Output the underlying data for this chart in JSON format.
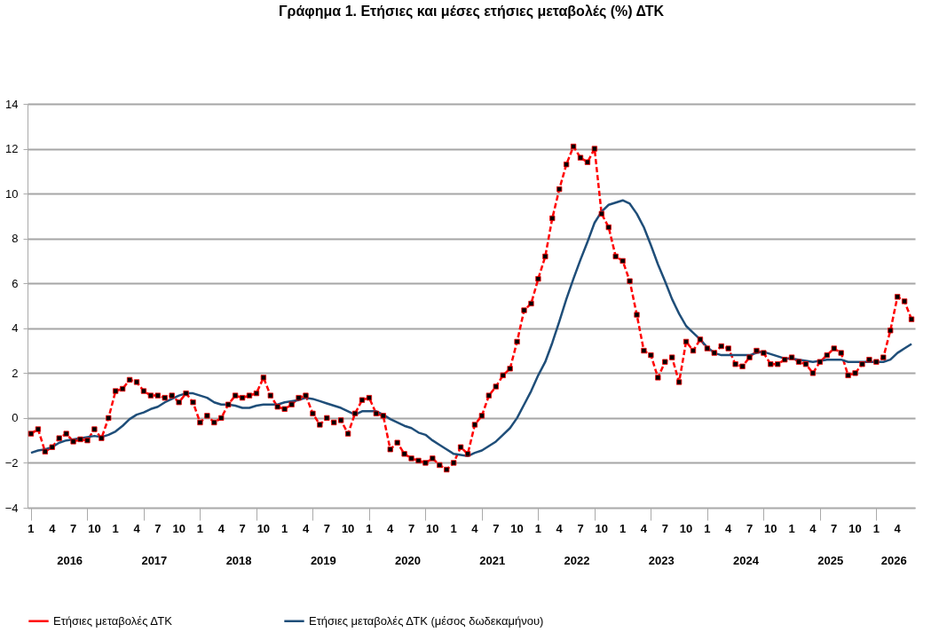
{
  "chart_data": {
    "type": "line",
    "title": "Γράφημα 1. Ετήσιες και μέσες ετήσιες μεταβολές (%) ΔΤΚ",
    "categories": [
      "1",
      null,
      null,
      "4",
      null,
      null,
      "7",
      null,
      null,
      "10",
      null,
      null,
      "1",
      null,
      null,
      "4",
      null,
      null,
      "7",
      null,
      null,
      "10",
      null,
      null,
      "1",
      null,
      null,
      "4",
      null,
      null,
      "7",
      null,
      null,
      "10",
      null,
      null,
      "1",
      null,
      null,
      "4",
      null,
      null,
      "7",
      null,
      null,
      "10",
      null,
      null,
      "1",
      null,
      null,
      "4",
      null,
      null,
      "7",
      null,
      null,
      "10",
      null,
      null,
      "1",
      null,
      null,
      "4",
      null,
      null,
      "7",
      null,
      null,
      "10",
      null,
      null,
      "1",
      null,
      null,
      "4",
      null,
      null,
      "7",
      null,
      null,
      "10",
      null,
      null,
      "1",
      null,
      null,
      "4",
      null,
      null,
      "7",
      null,
      null,
      "10",
      null,
      null,
      "1",
      null,
      null,
      "4",
      null,
      null,
      "7",
      null,
      null,
      "10",
      null,
      null,
      "1",
      null,
      null,
      "4",
      null,
      null,
      "7",
      null,
      null,
      "10",
      null,
      null,
      "1",
      null,
      null,
      "4",
      null,
      null
    ],
    "annotations": [
      "2016",
      "2017",
      "2018",
      "2019",
      "2020",
      "2021",
      "2022",
      "2023",
      "2024",
      "2025",
      "2026"
    ],
    "series": [
      {
        "name": "Ετήσιες μεταβολές ΔΤΚ",
        "color": "#ff0000",
        "line_style": "dashed",
        "marker": "square",
        "values": [
          -0.7,
          -0.5,
          -1.5,
          -1.3,
          -0.9,
          -0.7,
          -1.05,
          -0.95,
          -1.0,
          -0.5,
          -0.9,
          0.0,
          1.2,
          1.3,
          1.7,
          1.6,
          1.2,
          1.0,
          1.0,
          0.9,
          1.0,
          0.7,
          1.1,
          0.7,
          -0.2,
          0.1,
          -0.2,
          0.0,
          0.6,
          1.0,
          0.9,
          1.0,
          1.1,
          1.8,
          1.0,
          0.5,
          0.4,
          0.6,
          0.9,
          1.0,
          0.2,
          -0.3,
          0.0,
          -0.2,
          -0.1,
          -0.7,
          0.2,
          0.8,
          0.9,
          0.2,
          0.1,
          -1.4,
          -1.1,
          -1.6,
          -1.8,
          -1.9,
          -2.0,
          -1.8,
          -2.1,
          -2.3,
          -2.0,
          -1.3,
          -1.6,
          -0.3,
          0.1,
          1.0,
          1.4,
          1.9,
          2.2,
          3.4,
          4.8,
          5.1,
          6.2,
          7.2,
          8.9,
          10.2,
          11.3,
          12.1,
          11.6,
          11.4,
          12.0,
          9.1,
          8.5,
          7.2,
          7.0,
          6.1,
          4.6,
          3.0,
          2.8,
          1.8,
          2.5,
          2.7,
          1.6,
          3.4,
          3.0,
          3.5,
          3.1,
          2.9,
          3.2,
          3.1,
          2.4,
          2.3,
          2.7,
          3.0,
          2.9,
          2.4,
          2.4,
          2.6,
          2.7,
          2.5,
          2.4,
          2.0,
          2.5,
          2.8,
          3.1,
          2.9,
          1.9,
          2.0,
          2.4,
          2.6,
          2.5,
          2.7,
          3.9,
          5.4,
          5.2,
          4.4
        ]
      },
      {
        "name": "Ετήσιες μεταβολές ΔΤΚ (μέσος δωδεκαμήνου)",
        "color": "#1f4e79",
        "line_style": "solid",
        "marker": "none",
        "values": [
          -1.55,
          -1.45,
          -1.4,
          -1.3,
          -1.1,
          -1.0,
          -0.95,
          -0.9,
          -0.85,
          -0.8,
          -0.85,
          -0.75,
          -0.6,
          -0.35,
          -0.05,
          0.15,
          0.25,
          0.4,
          0.5,
          0.7,
          0.85,
          1.0,
          1.1,
          1.1,
          1.0,
          0.9,
          0.7,
          0.6,
          0.6,
          0.55,
          0.45,
          0.45,
          0.55,
          0.6,
          0.6,
          0.6,
          0.7,
          0.75,
          0.8,
          0.9,
          0.85,
          0.75,
          0.65,
          0.55,
          0.45,
          0.3,
          0.15,
          0.3,
          0.3,
          0.3,
          0.15,
          -0.05,
          -0.2,
          -0.35,
          -0.45,
          -0.65,
          -0.75,
          -1.0,
          -1.2,
          -1.4,
          -1.6,
          -1.65,
          -1.7,
          -1.55,
          -1.45,
          -1.25,
          -1.05,
          -0.75,
          -0.45,
          0.0,
          0.6,
          1.2,
          1.9,
          2.5,
          3.35,
          4.3,
          5.3,
          6.2,
          7.05,
          7.85,
          8.7,
          9.2,
          9.5,
          9.6,
          9.7,
          9.55,
          9.1,
          8.5,
          7.7,
          6.85,
          6.1,
          5.3,
          4.65,
          4.1,
          3.8,
          3.5,
          3.15,
          2.9,
          2.8,
          2.8,
          2.8,
          2.8,
          2.8,
          2.9,
          2.95,
          2.85,
          2.75,
          2.65,
          2.65,
          2.6,
          2.55,
          2.5,
          2.55,
          2.6,
          2.6,
          2.6,
          2.5,
          2.5,
          2.5,
          2.5,
          2.5,
          2.5,
          2.6,
          2.9,
          3.1,
          3.3
        ]
      }
    ],
    "ylim": [
      -4,
      14
    ],
    "yticks": [
      -4,
      -2,
      0,
      2,
      4,
      6,
      8,
      10,
      12,
      14
    ],
    "grid": "y",
    "legend": "bottom"
  }
}
